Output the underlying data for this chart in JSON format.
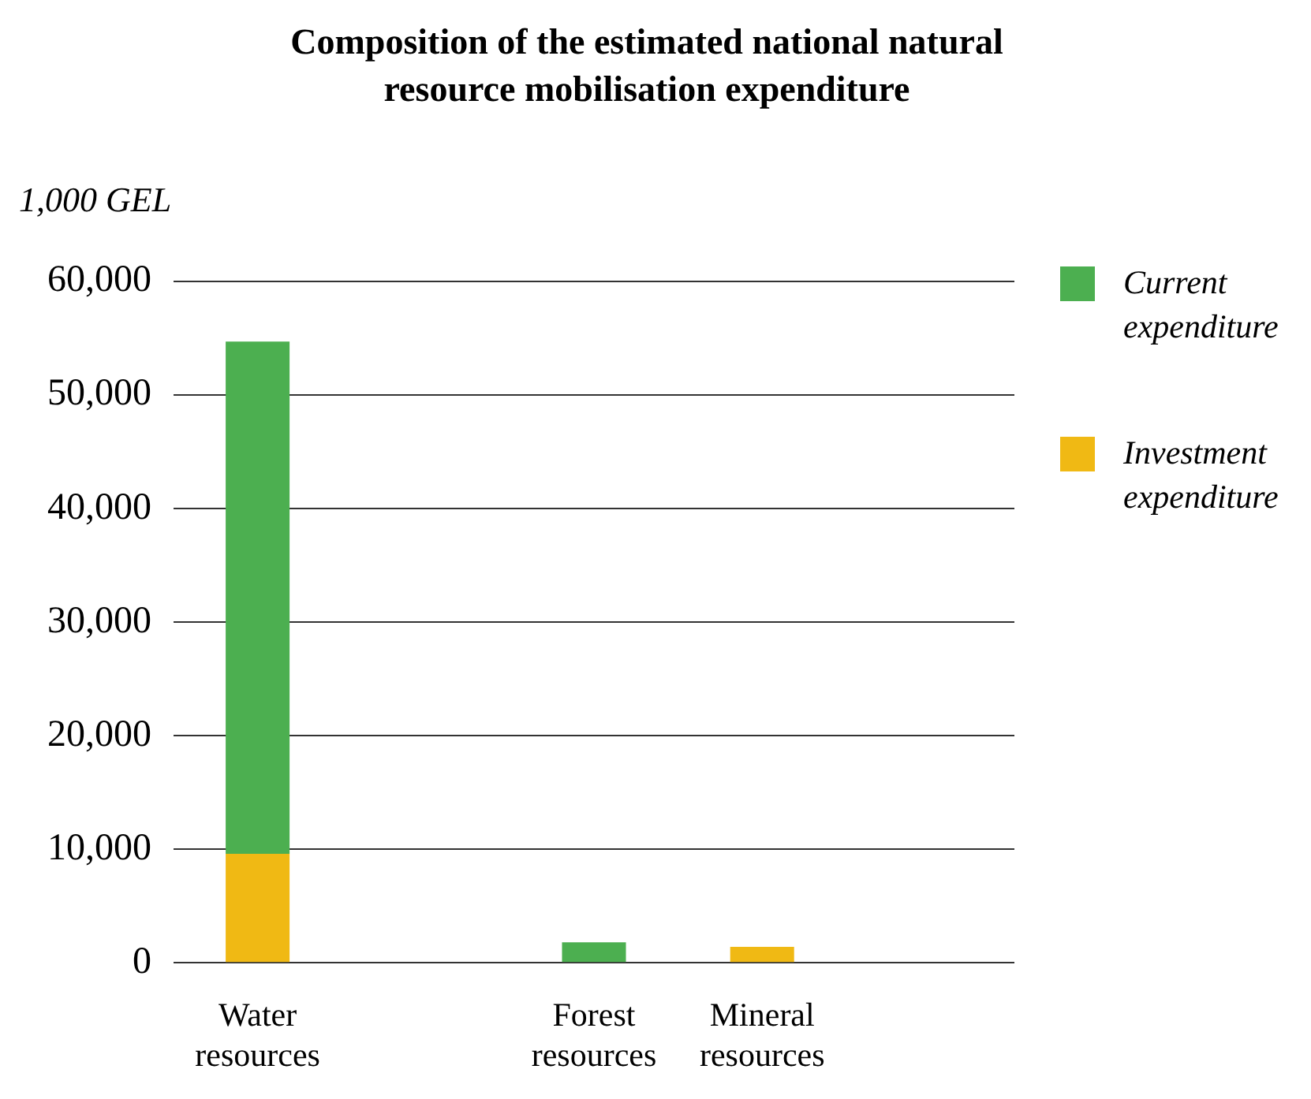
{
  "chart_data": {
    "type": "bar",
    "title": "Composition of the estimated national natural resource mobilisation expenditure",
    "ylabel": "1,000 GEL",
    "categories": [
      "Water resources",
      null,
      "Forest resources",
      "Mineral resources",
      null
    ],
    "series": [
      {
        "name": "Investment expenditure",
        "color": "#f0b914",
        "values": [
          9600,
          null,
          null,
          1400,
          null
        ]
      },
      {
        "name": "Current expenditure",
        "color": "#4caf50",
        "values": [
          45100,
          null,
          1800,
          null,
          null
        ]
      }
    ],
    "stacked": true,
    "ylim": [
      0,
      60000
    ],
    "yticks": [
      {
        "value": 0,
        "label": "0"
      },
      {
        "value": 10000,
        "label": "10,000"
      },
      {
        "value": 20000,
        "label": "20,000"
      },
      {
        "value": 30000,
        "label": "30,000"
      },
      {
        "value": 40000,
        "label": "40,000"
      },
      {
        "value": 50000,
        "label": "50,000"
      },
      {
        "value": 60000,
        "label": "60,000"
      }
    ],
    "grid": "y",
    "legend": "right"
  }
}
